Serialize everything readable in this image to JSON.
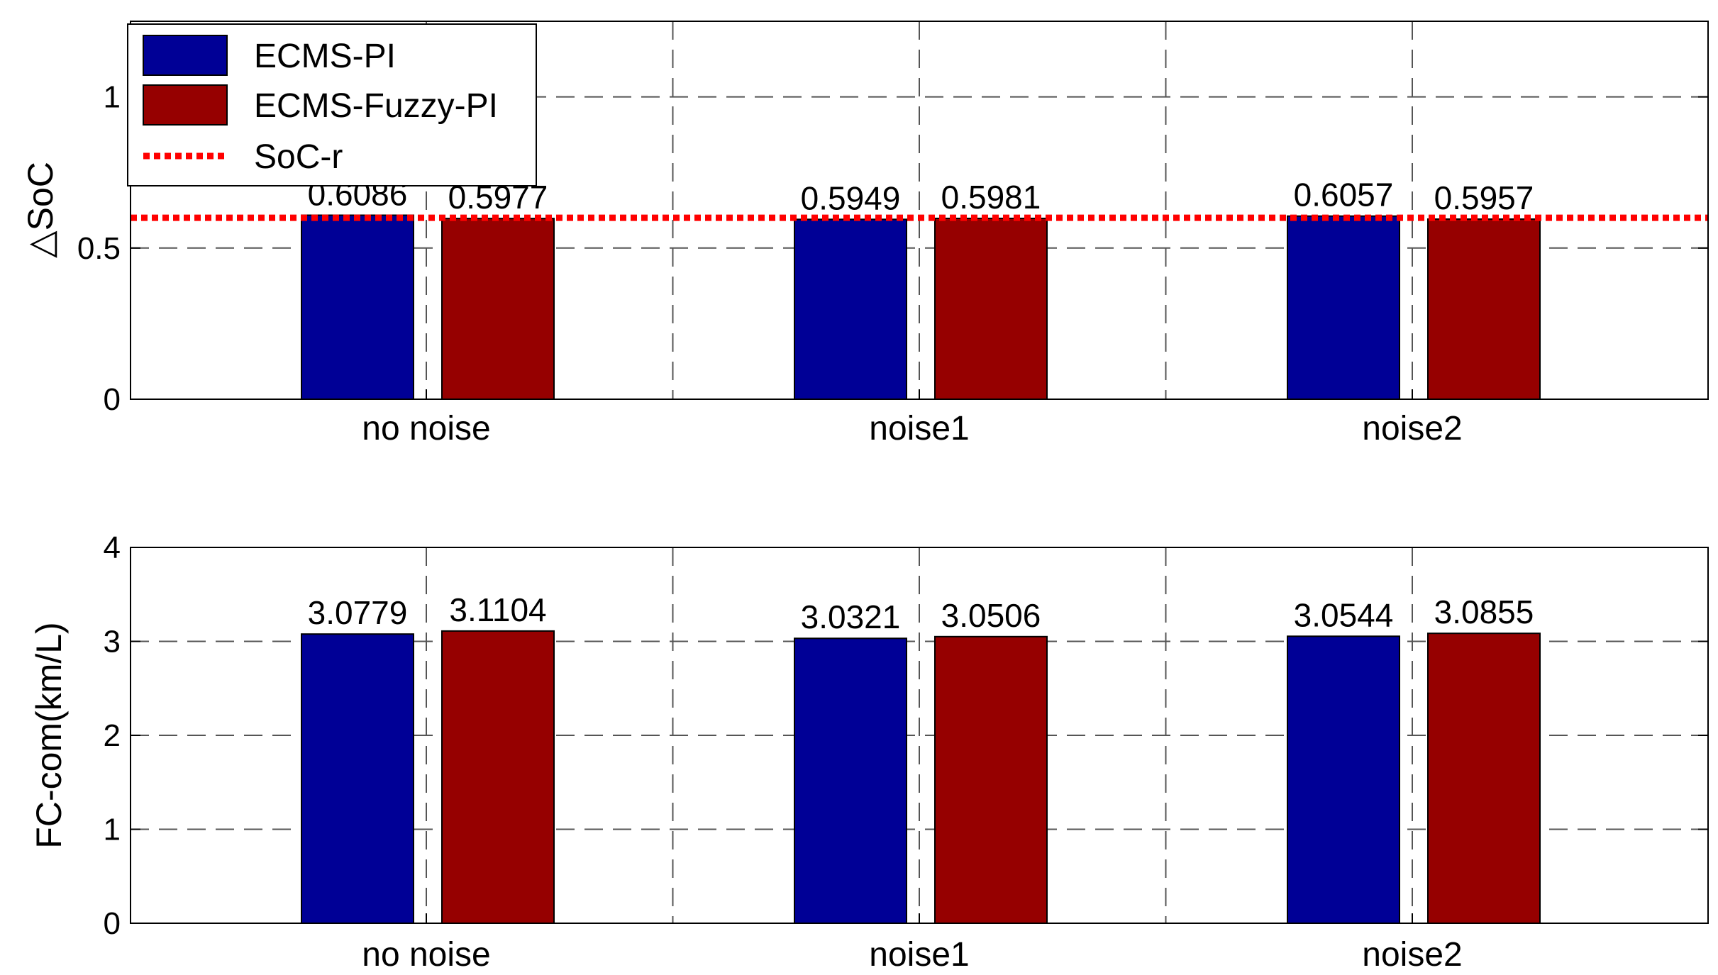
{
  "colors": {
    "ecms_pi": "#000096",
    "ecms_fuzzy_pi": "#960000",
    "reference": "#ff0000",
    "grid": "#555555",
    "axis": "#000000"
  },
  "legend": {
    "placement": "top-left",
    "entries": [
      "ECMS-PI",
      "ECMS-Fuzzy-PI",
      "SoC-r"
    ]
  },
  "chart_data": [
    {
      "type": "bar",
      "title": "",
      "xlabel": "",
      "ylabel": "△SoC",
      "categories": [
        "no noise",
        "noise1",
        "noise2"
      ],
      "series": [
        {
          "name": "ECMS-PI",
          "values": [
            0.6086,
            0.5949,
            0.6057
          ]
        },
        {
          "name": "ECMS-Fuzzy-PI",
          "values": [
            0.5977,
            0.5981,
            0.5957
          ]
        }
      ],
      "data_labels": [
        [
          "0.6086",
          "0.5977"
        ],
        [
          "0.5949",
          "0.5981"
        ],
        [
          "0.6057",
          "0.5957"
        ]
      ],
      "reference_line": {
        "name": "SoC-r",
        "value": 0.6
      },
      "ylim": [
        0,
        1.25
      ],
      "yticks": [
        0,
        0.5,
        1
      ],
      "ytick_labels": [
        "0",
        "0.5",
        "1"
      ],
      "grid": true
    },
    {
      "type": "bar",
      "title": "",
      "xlabel": "",
      "ylabel": "FC-com(km/L)",
      "categories": [
        "no noise",
        "noise1",
        "noise2"
      ],
      "series": [
        {
          "name": "ECMS-PI",
          "values": [
            3.0779,
            3.0321,
            3.0544
          ]
        },
        {
          "name": "ECMS-Fuzzy-PI",
          "values": [
            3.1104,
            3.0506,
            3.0855
          ]
        }
      ],
      "data_labels": [
        [
          "3.0779",
          "3.1104"
        ],
        [
          "3.0321",
          "3.0506"
        ],
        [
          "3.0544",
          "3.0855"
        ]
      ],
      "ylim": [
        0,
        4
      ],
      "yticks": [
        0,
        1,
        2,
        3,
        4
      ],
      "ytick_labels": [
        "0",
        "1",
        "2",
        "3",
        "4"
      ],
      "grid": true
    }
  ]
}
